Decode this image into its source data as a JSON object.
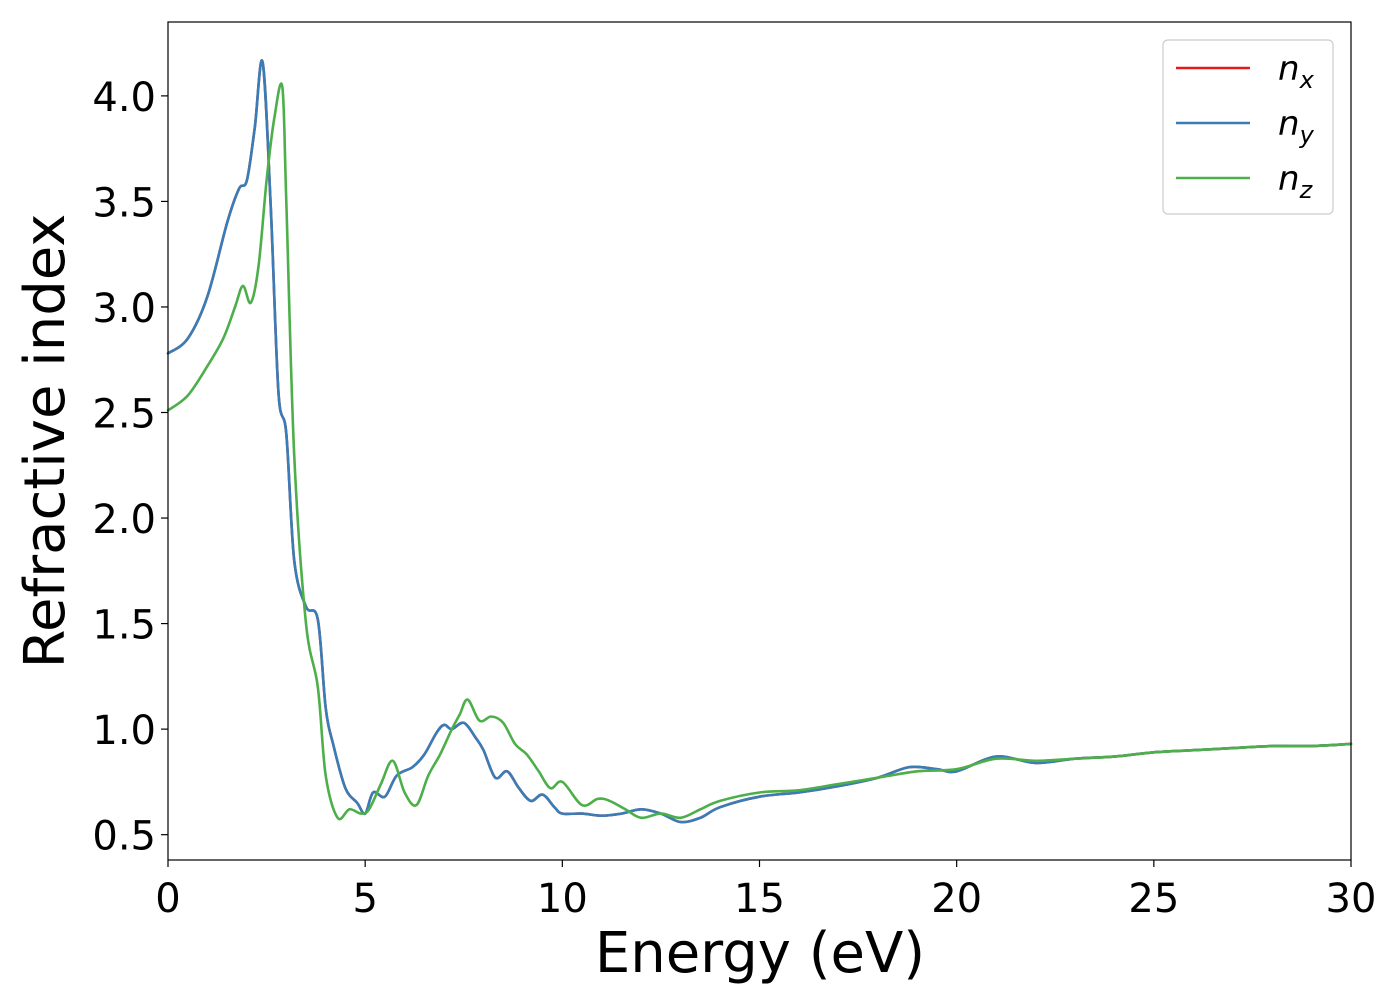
{
  "chart_data": {
    "type": "line",
    "xlabel": "Energy (eV)",
    "ylabel": "Refractive index",
    "xlim": [
      0,
      30
    ],
    "ylim": [
      0.38,
      4.35
    ],
    "xticks": [
      0,
      5,
      10,
      15,
      20,
      25,
      30
    ],
    "xtick_labels": [
      "0",
      "5",
      "10",
      "15",
      "20",
      "25",
      "30"
    ],
    "yticks": [
      0.5,
      1.0,
      1.5,
      2.0,
      2.5,
      3.0,
      3.5,
      4.0
    ],
    "ytick_labels": [
      "0.5",
      "1.0",
      "1.5",
      "2.0",
      "2.5",
      "3.0",
      "3.5",
      "4.0"
    ],
    "grid": false,
    "legend_position": "top-right",
    "series": [
      {
        "name": "n",
        "subscript": "x",
        "color": "#e41a1c",
        "x": [
          0,
          0.5,
          1.0,
          1.5,
          1.8,
          2.0,
          2.2,
          2.4,
          2.6,
          2.8,
          3.0,
          3.2,
          3.5,
          3.8,
          4.0,
          4.2,
          4.5,
          4.8,
          5.0,
          5.2,
          5.5,
          5.8,
          6.2,
          6.5,
          6.8,
          7.0,
          7.2,
          7.5,
          7.8,
          8.0,
          8.3,
          8.6,
          8.9,
          9.2,
          9.5,
          9.8,
          10.0,
          10.5,
          11.0,
          11.5,
          12.0,
          12.5,
          13.0,
          13.5,
          14.0,
          15.0,
          16.0,
          17.0,
          18.0,
          18.8,
          19.5,
          20.0,
          21.0,
          22.0,
          23.0,
          24.0,
          25.0,
          26.0,
          27.0,
          28.0,
          29.0,
          30.0
        ],
        "values": [
          2.78,
          2.85,
          3.05,
          3.4,
          3.56,
          3.6,
          3.85,
          4.16,
          3.5,
          2.6,
          2.4,
          1.8,
          1.58,
          1.52,
          1.1,
          0.92,
          0.72,
          0.65,
          0.6,
          0.7,
          0.68,
          0.78,
          0.82,
          0.88,
          0.98,
          1.02,
          1.0,
          1.03,
          0.96,
          0.9,
          0.77,
          0.8,
          0.72,
          0.66,
          0.69,
          0.63,
          0.6,
          0.6,
          0.59,
          0.6,
          0.62,
          0.6,
          0.56,
          0.58,
          0.63,
          0.68,
          0.7,
          0.73,
          0.77,
          0.82,
          0.81,
          0.8,
          0.87,
          0.84,
          0.86,
          0.87,
          0.89,
          0.9,
          0.91,
          0.92,
          0.92,
          0.93
        ]
      },
      {
        "name": "n",
        "subscript": "y",
        "color": "#377eb8",
        "x": [
          0,
          0.5,
          1.0,
          1.5,
          1.8,
          2.0,
          2.2,
          2.4,
          2.6,
          2.8,
          3.0,
          3.2,
          3.5,
          3.8,
          4.0,
          4.2,
          4.5,
          4.8,
          5.0,
          5.2,
          5.5,
          5.8,
          6.2,
          6.5,
          6.8,
          7.0,
          7.2,
          7.5,
          7.8,
          8.0,
          8.3,
          8.6,
          8.9,
          9.2,
          9.5,
          9.8,
          10.0,
          10.5,
          11.0,
          11.5,
          12.0,
          12.5,
          13.0,
          13.5,
          14.0,
          15.0,
          16.0,
          17.0,
          18.0,
          18.8,
          19.5,
          20.0,
          21.0,
          22.0,
          23.0,
          24.0,
          25.0,
          26.0,
          27.0,
          28.0,
          29.0,
          30.0
        ],
        "values": [
          2.78,
          2.85,
          3.05,
          3.4,
          3.56,
          3.6,
          3.85,
          4.16,
          3.5,
          2.6,
          2.4,
          1.8,
          1.58,
          1.52,
          1.1,
          0.92,
          0.72,
          0.65,
          0.6,
          0.7,
          0.68,
          0.78,
          0.82,
          0.88,
          0.98,
          1.02,
          1.0,
          1.03,
          0.96,
          0.9,
          0.77,
          0.8,
          0.72,
          0.66,
          0.69,
          0.63,
          0.6,
          0.6,
          0.59,
          0.6,
          0.62,
          0.6,
          0.56,
          0.58,
          0.63,
          0.68,
          0.7,
          0.73,
          0.77,
          0.82,
          0.81,
          0.8,
          0.87,
          0.84,
          0.86,
          0.87,
          0.89,
          0.9,
          0.91,
          0.92,
          0.92,
          0.93
        ]
      },
      {
        "name": "n",
        "subscript": "z",
        "color": "#4daf4a",
        "x": [
          0,
          0.5,
          1.0,
          1.4,
          1.7,
          1.9,
          2.1,
          2.3,
          2.5,
          2.7,
          2.9,
          3.0,
          3.2,
          3.5,
          3.8,
          4.0,
          4.3,
          4.6,
          4.9,
          5.1,
          5.4,
          5.7,
          6.0,
          6.3,
          6.6,
          6.9,
          7.2,
          7.4,
          7.6,
          7.9,
          8.2,
          8.5,
          8.8,
          9.1,
          9.4,
          9.7,
          10.0,
          10.5,
          10.9,
          11.2,
          11.6,
          12.0,
          12.5,
          13.0,
          13.5,
          14.0,
          15.0,
          16.0,
          17.0,
          18.0,
          19.0,
          20.0,
          21.0,
          22.0,
          23.0,
          24.0,
          25.0,
          26.0,
          27.0,
          28.0,
          29.0,
          30.0
        ],
        "values": [
          2.51,
          2.58,
          2.72,
          2.85,
          3.0,
          3.1,
          3.02,
          3.2,
          3.6,
          3.9,
          4.04,
          3.5,
          2.3,
          1.5,
          1.2,
          0.78,
          0.58,
          0.62,
          0.6,
          0.62,
          0.74,
          0.85,
          0.7,
          0.64,
          0.78,
          0.88,
          1.0,
          1.07,
          1.14,
          1.04,
          1.06,
          1.03,
          0.93,
          0.88,
          0.8,
          0.72,
          0.75,
          0.64,
          0.67,
          0.66,
          0.62,
          0.58,
          0.6,
          0.58,
          0.62,
          0.66,
          0.7,
          0.71,
          0.74,
          0.77,
          0.8,
          0.81,
          0.86,
          0.85,
          0.86,
          0.87,
          0.89,
          0.9,
          0.91,
          0.92,
          0.92,
          0.93
        ]
      }
    ]
  }
}
